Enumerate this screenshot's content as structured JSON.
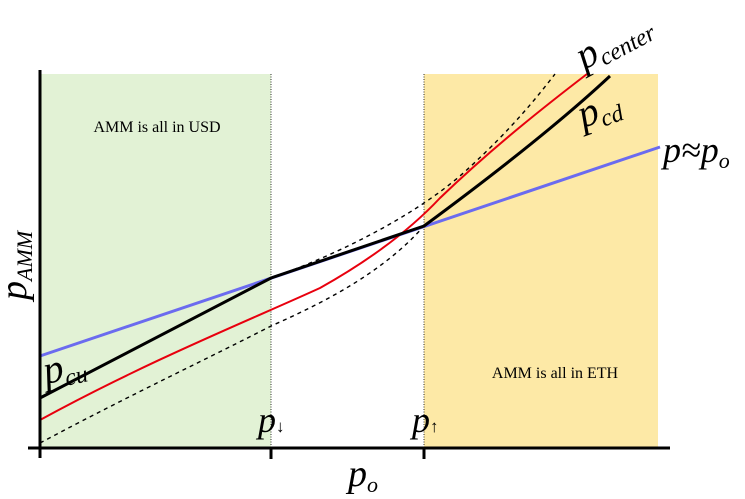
{
  "regions": {
    "left": {
      "label": "AMM is all in USD",
      "fill": "#e2f2d5"
    },
    "right": {
      "label": "AMM is all in ETH",
      "fill": "#fde9a6"
    }
  },
  "axes": {
    "x_label": {
      "base": "p",
      "sub": "o"
    },
    "y_label": {
      "base": "p",
      "sub": "AMM"
    },
    "ticks": [
      {
        "id": "p-down",
        "base": "p",
        "arrow": "↓"
      },
      {
        "id": "p-up",
        "base": "p",
        "arrow": "↑"
      }
    ]
  },
  "curves": {
    "center": {
      "label_base": "p",
      "label_sub": "center",
      "color": "#e8000e"
    },
    "cd": {
      "label_base": "p",
      "label_sub": "cd",
      "color": "#000000"
    },
    "cu": {
      "label_base": "p",
      "label_sub": "cu",
      "color": "#000000"
    },
    "identity": {
      "label": "p≈p",
      "label_sub": "o",
      "color": "#6b6bef"
    },
    "dashed_color": "#000000"
  }
}
